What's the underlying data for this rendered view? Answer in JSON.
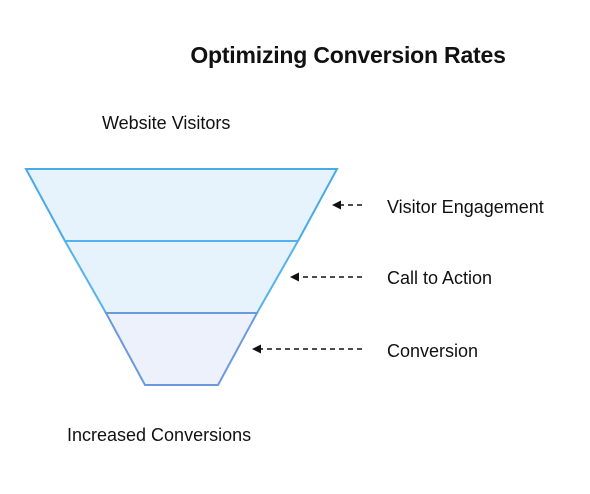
{
  "title": "Optimizing Conversion Rates",
  "top_label": "Website Visitors",
  "bottom_label": "Increased Conversions",
  "stages": [
    {
      "label": "Visitor Engagement"
    },
    {
      "label": "Call to Action"
    },
    {
      "label": "Conversion"
    }
  ],
  "colors": {
    "stage_fill_1": "#E6F3FC",
    "stage_fill_2": "#E7F3FC",
    "stage_fill_3": "#EDF1FB",
    "stroke_1": "#4AAAE6",
    "stroke_2": "#55B2EC",
    "stroke_3": "#6C99DE",
    "arrow": "#111111"
  }
}
